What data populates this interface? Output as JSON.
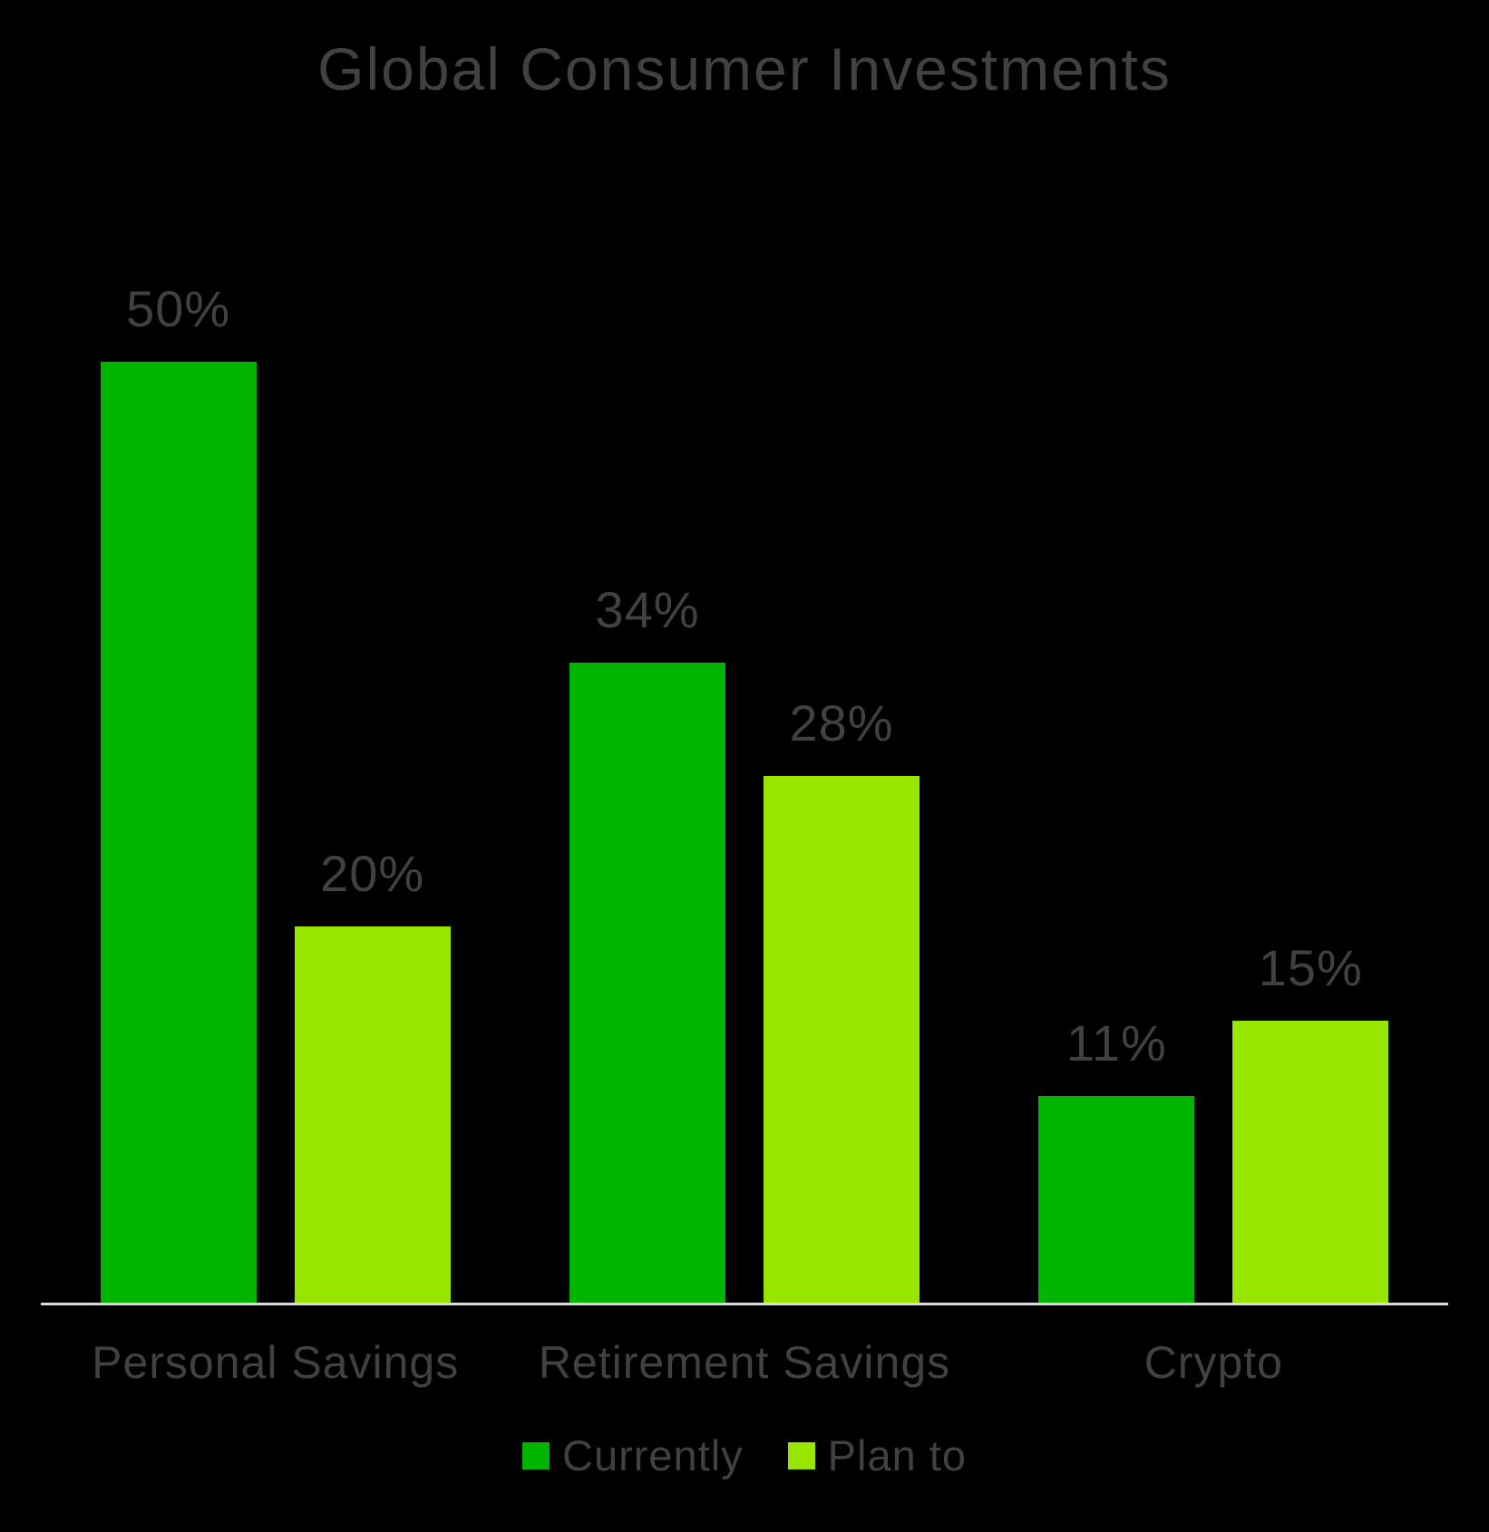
{
  "chart_data": {
    "type": "bar",
    "title": "Global Consumer Investments",
    "categories": [
      "Personal Savings",
      "Retirement Savings",
      "Crypto"
    ],
    "series": [
      {
        "name": "Currently",
        "color": "#00B400",
        "values": [
          50,
          34,
          11
        ],
        "labels": [
          "50%",
          "34%",
          "11%"
        ]
      },
      {
        "name": "Plan to",
        "color": "#98E600",
        "values": [
          20,
          28,
          15
        ],
        "labels": [
          "20%",
          "28%",
          "15%"
        ]
      }
    ],
    "xlabel": "",
    "ylabel": "",
    "ylim": [
      0,
      63
    ],
    "value_suffix": "%",
    "grid": false,
    "legend_position": "bottom",
    "background_color": "#000000",
    "text_color": "#414141",
    "axis_line_color": "#DCDCDC"
  }
}
